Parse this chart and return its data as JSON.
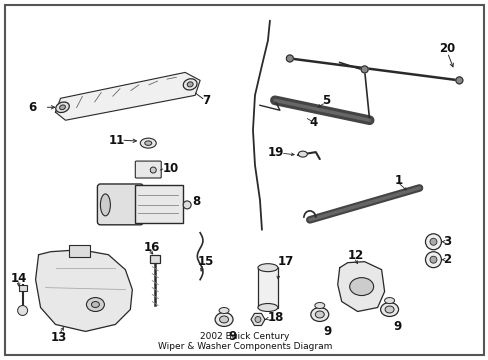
{
  "bg": "#ffffff",
  "fw": 4.89,
  "fh": 3.6,
  "dpi": 100
}
